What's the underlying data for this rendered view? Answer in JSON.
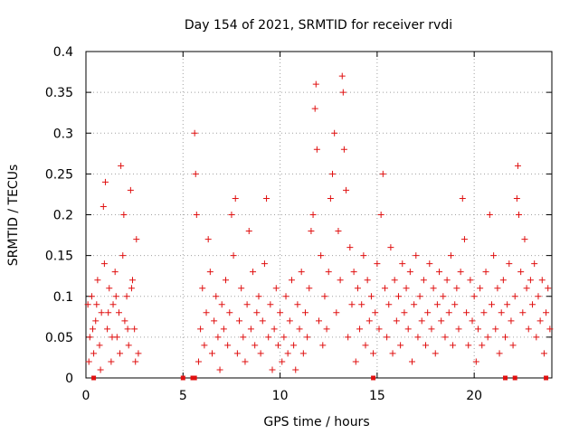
{
  "chart_data": {
    "type": "scatter",
    "title": "Day 154 of 2021, SRMTID for receiver rvdi",
    "xlabel": "GPS time / hours",
    "ylabel": "SRMTID / TECUs",
    "xlim": [
      0,
      24
    ],
    "ylim": [
      0,
      0.4
    ],
    "x_ticks": [
      "0",
      "5",
      "10",
      "15",
      "20"
    ],
    "y_ticks": [
      "0",
      "0.05",
      "0.1",
      "0.15",
      "0.2",
      "0.25",
      "0.3",
      "0.35",
      "0.4"
    ],
    "x_tick_values": [
      0,
      5,
      10,
      15,
      20
    ],
    "y_tick_values": [
      0,
      0.05,
      0.1,
      0.15,
      0.2,
      0.25,
      0.3,
      0.35,
      0.4
    ],
    "grid": true,
    "marker": "+",
    "color": "#e01010",
    "series": [
      {
        "points": [
          [
            0.1,
            0.09
          ],
          [
            0.2,
            0.05
          ],
          [
            0.3,
            0.1
          ],
          [
            0.4,
            0.03
          ],
          [
            0.5,
            0.07
          ],
          [
            0.6,
            0.12
          ],
          [
            0.7,
            0.04
          ],
          [
            0.8,
            0.08
          ],
          [
            0.9,
            0.21
          ],
          [
            1.0,
            0.24
          ],
          [
            1.1,
            0.06
          ],
          [
            1.2,
            0.11
          ],
          [
            1.3,
            0.02
          ],
          [
            1.4,
            0.09
          ],
          [
            1.5,
            0.13
          ],
          [
            1.6,
            0.05
          ],
          [
            1.7,
            0.08
          ],
          [
            1.8,
            0.26
          ],
          [
            1.9,
            0.15
          ],
          [
            2.0,
            0.07
          ],
          [
            2.1,
            0.1
          ],
          [
            2.2,
            0.04
          ],
          [
            2.3,
            0.23
          ],
          [
            2.4,
            0.12
          ],
          [
            2.5,
            0.06
          ],
          [
            2.6,
            0.17
          ],
          [
            2.7,
            0.03
          ],
          [
            0.15,
            0.02
          ],
          [
            0.35,
            0.06
          ],
          [
            0.55,
            0.09
          ],
          [
            0.75,
            0.01
          ],
          [
            0.95,
            0.14
          ],
          [
            1.15,
            0.08
          ],
          [
            1.35,
            0.05
          ],
          [
            1.55,
            0.1
          ],
          [
            1.75,
            0.03
          ],
          [
            1.95,
            0.2
          ],
          [
            2.15,
            0.06
          ],
          [
            2.35,
            0.11
          ],
          [
            2.55,
            0.02
          ],
          [
            5.6,
            0.3
          ],
          [
            5.65,
            0.25
          ],
          [
            5.7,
            0.2
          ],
          [
            5.8,
            0.02
          ],
          [
            5.9,
            0.06
          ],
          [
            6.0,
            0.11
          ],
          [
            6.1,
            0.04
          ],
          [
            6.2,
            0.08
          ],
          [
            6.3,
            0.17
          ],
          [
            6.4,
            0.13
          ],
          [
            6.5,
            0.03
          ],
          [
            6.6,
            0.07
          ],
          [
            6.7,
            0.1
          ],
          [
            6.8,
            0.05
          ],
          [
            6.9,
            0.01
          ],
          [
            7.0,
            0.09
          ],
          [
            7.1,
            0.06
          ],
          [
            7.2,
            0.12
          ],
          [
            7.3,
            0.04
          ],
          [
            7.4,
            0.08
          ],
          [
            7.5,
            0.2
          ],
          [
            7.6,
            0.15
          ],
          [
            7.7,
            0.22
          ],
          [
            7.8,
            0.03
          ],
          [
            7.9,
            0.07
          ],
          [
            8.0,
            0.11
          ],
          [
            8.1,
            0.05
          ],
          [
            8.2,
            0.02
          ],
          [
            8.3,
            0.09
          ],
          [
            8.4,
            0.18
          ],
          [
            8.5,
            0.06
          ],
          [
            8.6,
            0.13
          ],
          [
            8.7,
            0.04
          ],
          [
            8.8,
            0.08
          ],
          [
            8.9,
            0.1
          ],
          [
            9.0,
            0.03
          ],
          [
            9.1,
            0.07
          ],
          [
            9.2,
            0.14
          ],
          [
            9.3,
            0.22
          ],
          [
            9.4,
            0.05
          ],
          [
            9.5,
            0.09
          ],
          [
            9.6,
            0.01
          ],
          [
            9.7,
            0.06
          ],
          [
            9.8,
            0.11
          ],
          [
            9.9,
            0.04
          ],
          [
            10.0,
            0.08
          ],
          [
            10.1,
            0.02
          ],
          [
            10.2,
            0.05
          ],
          [
            10.3,
            0.1
          ],
          [
            10.4,
            0.03
          ],
          [
            10.5,
            0.07
          ],
          [
            10.6,
            0.12
          ],
          [
            10.7,
            0.04
          ],
          [
            10.8,
            0.01
          ],
          [
            10.9,
            0.09
          ],
          [
            11.0,
            0.06
          ],
          [
            11.1,
            0.13
          ],
          [
            11.2,
            0.03
          ],
          [
            11.3,
            0.08
          ],
          [
            11.4,
            0.05
          ],
          [
            11.5,
            0.11
          ],
          [
            11.6,
            0.18
          ],
          [
            11.7,
            0.2
          ],
          [
            11.8,
            0.33
          ],
          [
            11.85,
            0.36
          ],
          [
            11.9,
            0.28
          ],
          [
            12.0,
            0.07
          ],
          [
            12.1,
            0.15
          ],
          [
            12.2,
            0.04
          ],
          [
            12.3,
            0.1
          ],
          [
            12.4,
            0.06
          ],
          [
            12.5,
            0.13
          ],
          [
            12.6,
            0.22
          ],
          [
            12.7,
            0.25
          ],
          [
            12.8,
            0.3
          ],
          [
            12.9,
            0.08
          ],
          [
            13.0,
            0.18
          ],
          [
            13.1,
            0.12
          ],
          [
            13.2,
            0.37
          ],
          [
            13.25,
            0.35
          ],
          [
            13.3,
            0.28
          ],
          [
            13.4,
            0.23
          ],
          [
            13.5,
            0.05
          ],
          [
            13.6,
            0.16
          ],
          [
            13.7,
            0.09
          ],
          [
            13.8,
            0.13
          ],
          [
            13.9,
            0.02
          ],
          [
            14.0,
            0.11
          ],
          [
            14.1,
            0.06
          ],
          [
            14.2,
            0.09
          ],
          [
            14.3,
            0.15
          ],
          [
            14.4,
            0.04
          ],
          [
            14.5,
            0.12
          ],
          [
            14.6,
            0.07
          ],
          [
            14.7,
            0.1
          ],
          [
            14.8,
            0.03
          ],
          [
            14.9,
            0.08
          ],
          [
            15.0,
            0.14
          ],
          [
            15.1,
            0.06
          ],
          [
            15.2,
            0.2
          ],
          [
            15.3,
            0.25
          ],
          [
            15.4,
            0.11
          ],
          [
            15.5,
            0.05
          ],
          [
            15.6,
            0.09
          ],
          [
            15.7,
            0.16
          ],
          [
            15.8,
            0.03
          ],
          [
            15.9,
            0.12
          ],
          [
            16.0,
            0.07
          ],
          [
            16.1,
            0.1
          ],
          [
            16.2,
            0.04
          ],
          [
            16.3,
            0.14
          ],
          [
            16.4,
            0.08
          ],
          [
            16.5,
            0.11
          ],
          [
            16.6,
            0.06
          ],
          [
            16.7,
            0.13
          ],
          [
            16.8,
            0.02
          ],
          [
            16.9,
            0.09
          ],
          [
            17.0,
            0.15
          ],
          [
            17.1,
            0.05
          ],
          [
            17.2,
            0.1
          ],
          [
            17.3,
            0.07
          ],
          [
            17.4,
            0.12
          ],
          [
            17.5,
            0.04
          ],
          [
            17.6,
            0.08
          ],
          [
            17.7,
            0.14
          ],
          [
            17.8,
            0.06
          ],
          [
            17.9,
            0.11
          ],
          [
            18.0,
            0.03
          ],
          [
            18.1,
            0.09
          ],
          [
            18.2,
            0.13
          ],
          [
            18.3,
            0.07
          ],
          [
            18.4,
            0.1
          ],
          [
            18.5,
            0.05
          ],
          [
            18.6,
            0.12
          ],
          [
            18.7,
            0.08
          ],
          [
            18.8,
            0.15
          ],
          [
            18.9,
            0.04
          ],
          [
            19.0,
            0.09
          ],
          [
            19.1,
            0.11
          ],
          [
            19.2,
            0.06
          ],
          [
            19.3,
            0.13
          ],
          [
            19.4,
            0.22
          ],
          [
            19.5,
            0.17
          ],
          [
            19.6,
            0.08
          ],
          [
            19.7,
            0.04
          ],
          [
            19.8,
            0.12
          ],
          [
            19.9,
            0.07
          ],
          [
            20.0,
            0.1
          ],
          [
            20.1,
            0.02
          ],
          [
            20.2,
            0.06
          ],
          [
            20.3,
            0.11
          ],
          [
            20.4,
            0.04
          ],
          [
            20.5,
            0.08
          ],
          [
            20.6,
            0.13
          ],
          [
            20.7,
            0.05
          ],
          [
            20.8,
            0.2
          ],
          [
            20.9,
            0.09
          ],
          [
            21.0,
            0.15
          ],
          [
            21.1,
            0.06
          ],
          [
            21.2,
            0.11
          ],
          [
            21.3,
            0.03
          ],
          [
            21.4,
            0.08
          ],
          [
            21.5,
            0.12
          ],
          [
            21.6,
            0.05
          ],
          [
            21.7,
            0.09
          ],
          [
            21.8,
            0.14
          ],
          [
            21.9,
            0.07
          ],
          [
            22.0,
            0.04
          ],
          [
            22.1,
            0.1
          ],
          [
            22.2,
            0.22
          ],
          [
            22.25,
            0.26
          ],
          [
            22.3,
            0.2
          ],
          [
            22.4,
            0.13
          ],
          [
            22.5,
            0.08
          ],
          [
            22.6,
            0.17
          ],
          [
            22.7,
            0.11
          ],
          [
            22.8,
            0.06
          ],
          [
            22.9,
            0.12
          ],
          [
            23.0,
            0.09
          ],
          [
            23.1,
            0.14
          ],
          [
            23.2,
            0.05
          ],
          [
            23.3,
            0.1
          ],
          [
            23.4,
            0.07
          ],
          [
            23.5,
            0.12
          ],
          [
            23.6,
            0.03
          ],
          [
            23.7,
            0.08
          ],
          [
            23.8,
            0.11
          ],
          [
            23.9,
            0.06
          ]
        ]
      }
    ],
    "zero_markers": [
      0.4,
      5.0,
      5.5,
      5.6,
      14.8,
      21.6,
      22.1,
      23.7
    ]
  }
}
